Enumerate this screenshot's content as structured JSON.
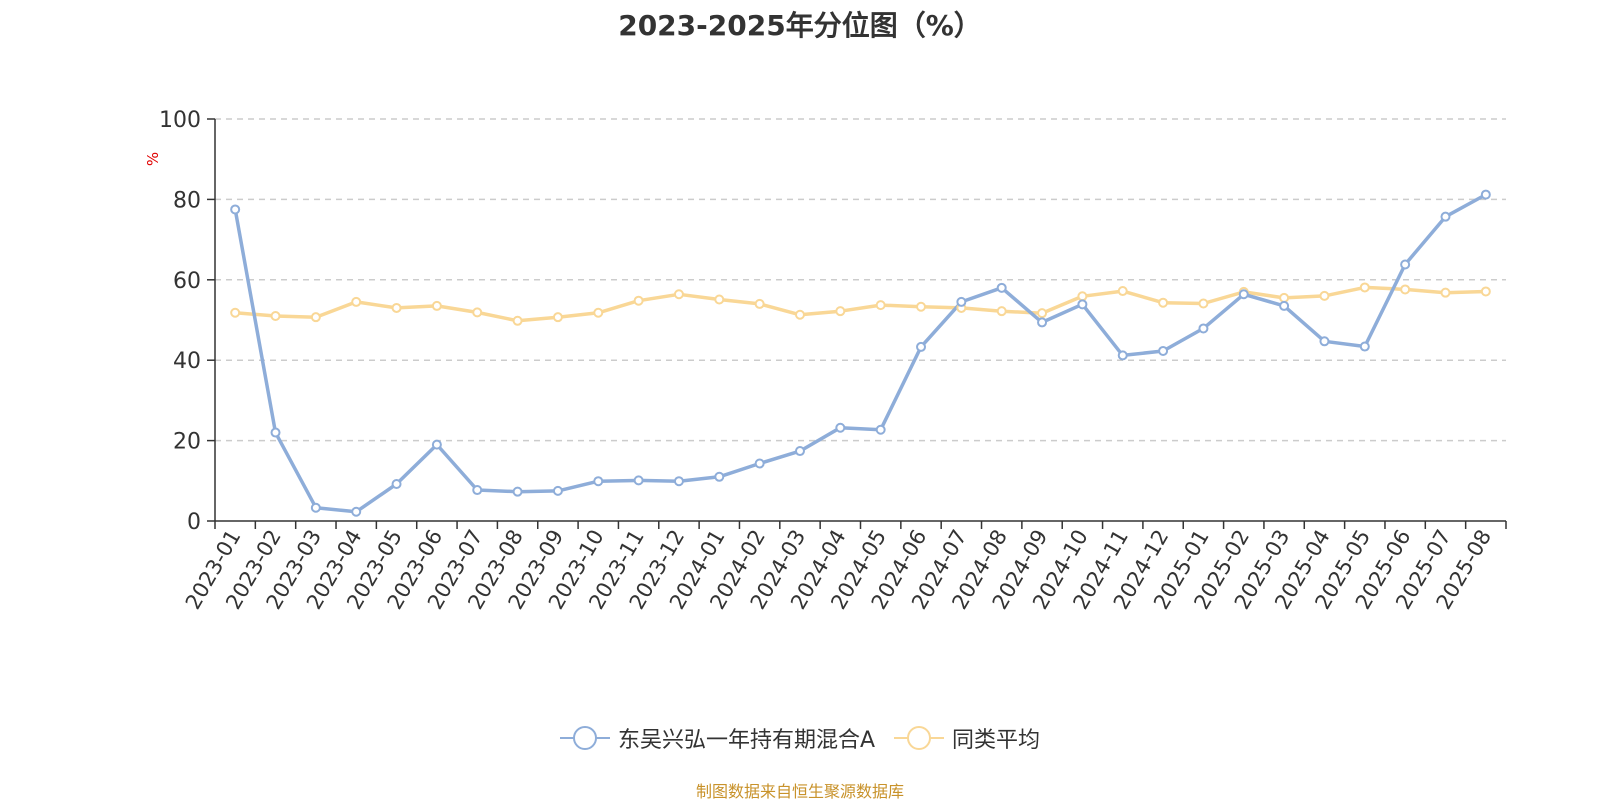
{
  "chart_data": {
    "type": "line",
    "title": "2023-2025年分位图（%）",
    "xlabel": "",
    "ylabel": "%",
    "ylim": [
      0,
      100
    ],
    "yticks": [
      0,
      20,
      40,
      60,
      80,
      100
    ],
    "grid": "horizontal dashed",
    "legend_position": "bottom-center",
    "categories": [
      "2023-01",
      "2023-02",
      "2023-03",
      "2023-04",
      "2023-05",
      "2023-06",
      "2023-07",
      "2023-08",
      "2023-09",
      "2023-10",
      "2023-11",
      "2023-12",
      "2024-01",
      "2024-02",
      "2024-03",
      "2024-04",
      "2024-05",
      "2024-06",
      "2024-07",
      "2024-08",
      "2024-09",
      "2024-10",
      "2024-11",
      "2024-12",
      "2025-01",
      "2025-02",
      "2025-03",
      "2025-04",
      "2025-05",
      "2025-06",
      "2025-07",
      "2025-08"
    ],
    "series": [
      {
        "name": "东吴兴弘一年持有期混合A",
        "color": "#8eadd9",
        "values": [
          77.5,
          22,
          3.3,
          2.3,
          9.2,
          19,
          7.7,
          7.3,
          7.5,
          9.9,
          10.1,
          9.9,
          11,
          14.3,
          17.4,
          23.2,
          22.7,
          43.3,
          54.5,
          58,
          49.4,
          53.9,
          41.2,
          42.3,
          47.9,
          56.4,
          53.5,
          44.7,
          43.4,
          63.8,
          75.7,
          81.2
        ]
      },
      {
        "name": "同类平均",
        "color": "#f9d796",
        "values": [
          51.8,
          51,
          50.7,
          54.5,
          53,
          53.5,
          51.9,
          49.8,
          50.7,
          51.8,
          54.8,
          56.4,
          55.1,
          54,
          51.3,
          52.2,
          53.7,
          53.3,
          53,
          52.2,
          51.7,
          55.9,
          57.2,
          54.3,
          54.1,
          57,
          55.5,
          56,
          58.1,
          57.6,
          56.8,
          57.1
        ]
      }
    ]
  },
  "source_note": "制图数据来自恒生聚源数据库"
}
